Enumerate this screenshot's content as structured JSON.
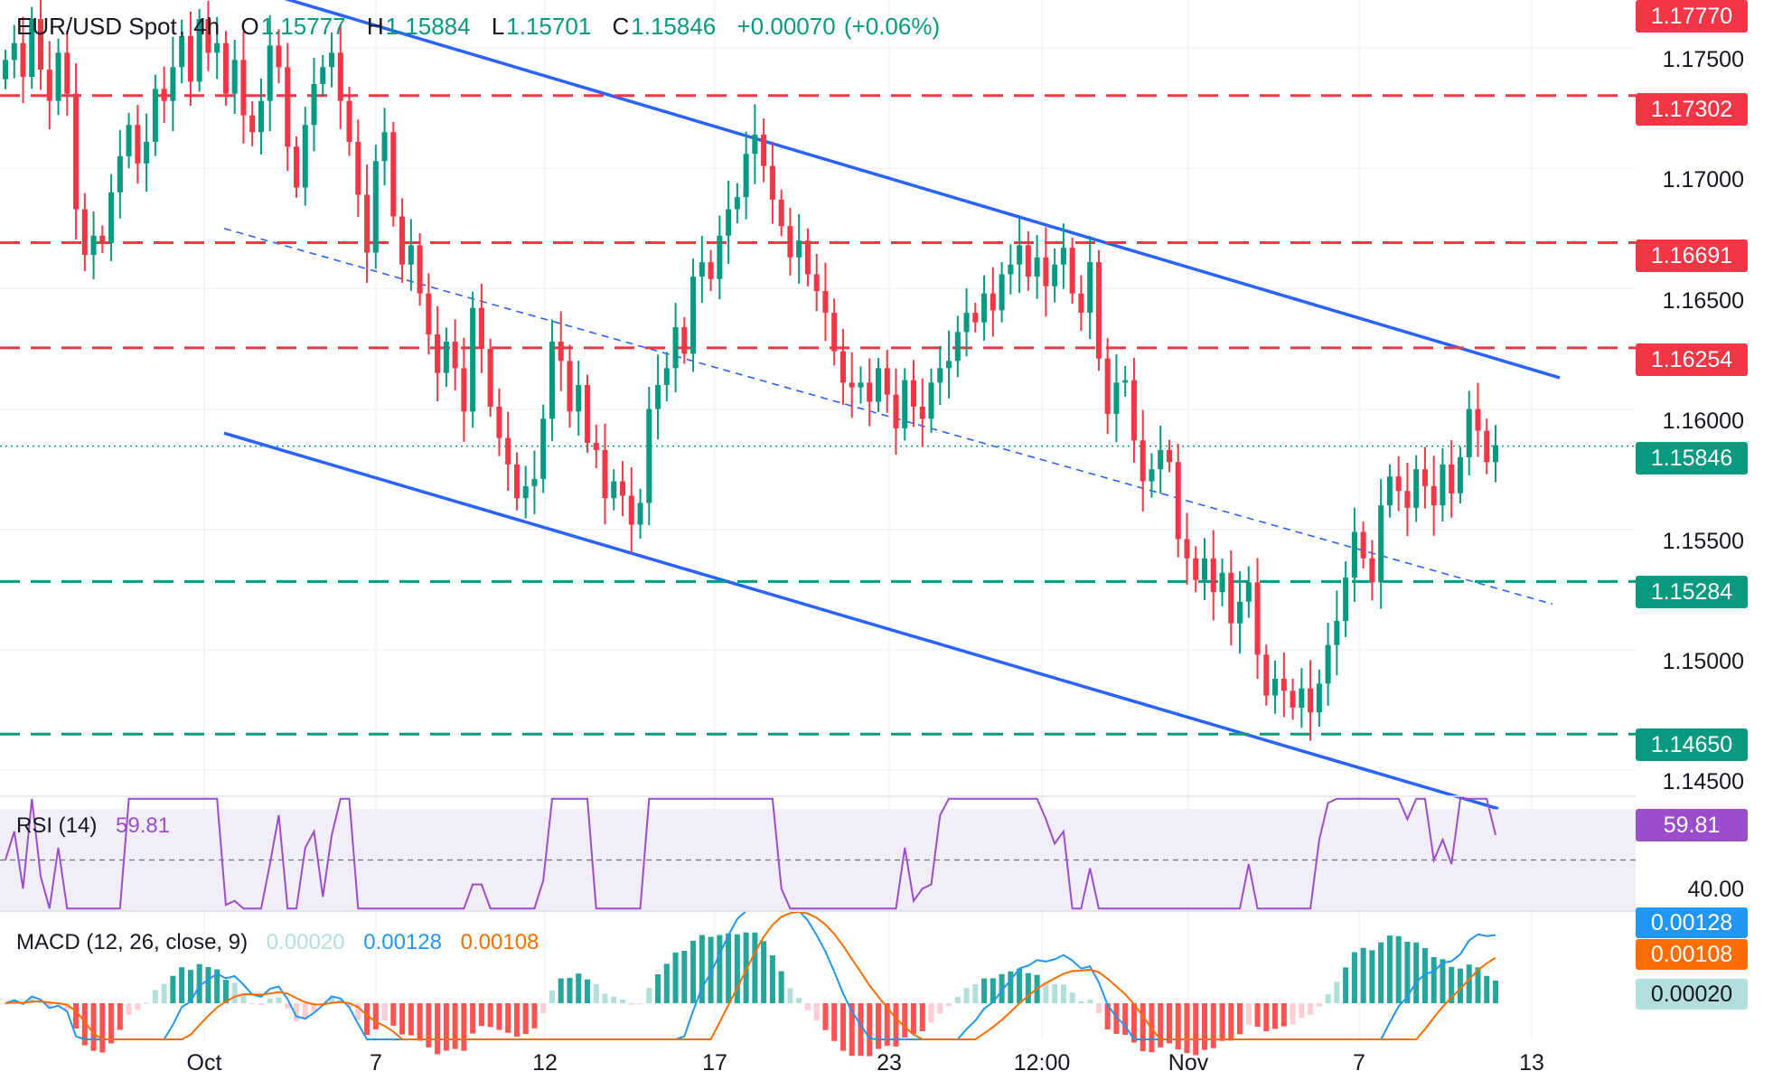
{
  "header": {
    "symbol": "EUR/USD Spot",
    "sep": ",",
    "interval": "4h",
    "open_label": "O",
    "open": "1.15777",
    "high_label": "H",
    "high": "1.15884",
    "low_label": "L",
    "low": "1.15701",
    "close_label": "C",
    "close": "1.15846",
    "change": "+0.00070",
    "change_pct": "(+0.06%)"
  },
  "price_axis": {
    "ticks": [
      "1.17500",
      "1.17000",
      "1.16500",
      "1.16000",
      "1.15500",
      "1.15000",
      "1.14500"
    ],
    "current_price": "1.15846",
    "current_price_color": "#089981"
  },
  "levels": {
    "resistance": [
      {
        "label": "1.17770",
        "value": 1.1777,
        "dashed": false
      },
      {
        "label": "1.17302",
        "value": 1.17302,
        "dashed": true
      },
      {
        "label": "1.16691",
        "value": 1.16691,
        "dashed": true
      },
      {
        "label": "1.16254",
        "value": 1.16254,
        "dashed": true
      }
    ],
    "support": [
      {
        "label": "1.15284",
        "value": 1.15284,
        "dashed": true
      },
      {
        "label": "1.14650",
        "value": 1.1465,
        "dashed": true
      }
    ],
    "resistance_color": "#f23645",
    "support_color": "#089981"
  },
  "rsi": {
    "label": "RSI (14)",
    "value": "59.81",
    "axis_tick": "40.00",
    "color": "#9c4dcc"
  },
  "macd": {
    "label": "MACD (12, 26, close, 9)",
    "histogram": "0.00020",
    "macd": "0.00128",
    "signal": "0.00108",
    "histogram_color": "#b2dfdb",
    "macd_color": "#2196f3",
    "signal_color": "#ff6d00"
  },
  "x_axis": {
    "ticks": [
      "Oct",
      "7",
      "12",
      "17",
      "23",
      "12:00",
      "Nov",
      "7",
      "13"
    ]
  },
  "colors": {
    "up": "#089981",
    "down": "#f23645",
    "channel": "#2962ff"
  },
  "chart_data": {
    "type": "candlestick",
    "title": "EUR/USD Spot, 4h",
    "instrument": "EUR/USD Spot",
    "timeframe": "4h",
    "ohlc_last": {
      "open": 1.15777,
      "high": 1.15884,
      "low": 1.15701,
      "close": 1.15846,
      "change": 0.0007,
      "change_pct": 0.06
    },
    "x_range": [
      "Sep 26",
      "Nov 11"
    ],
    "ylim": [
      1.1435,
      1.1785
    ],
    "candle_closes_approx": [
      1.1745,
      1.1752,
      1.1738,
      1.1762,
      1.1741,
      1.1728,
      1.1748,
      1.1731,
      1.1683,
      1.1664,
      1.1672,
      1.1669,
      1.169,
      1.1705,
      1.1718,
      1.1702,
      1.1711,
      1.1733,
      1.1728,
      1.1742,
      1.1755,
      1.1736,
      1.1762,
      1.1748,
      1.1752,
      1.1731,
      1.1745,
      1.1722,
      1.1715,
      1.1728,
      1.1751,
      1.1742,
      1.1709,
      1.1692,
      1.1718,
      1.1735,
      1.1742,
      1.1748,
      1.1728,
      1.1711,
      1.1689,
      1.1665,
      1.1703,
      1.1715,
      1.168,
      1.166,
      1.1668,
      1.1648,
      1.1631,
      1.1615,
      1.1628,
      1.1617,
      1.1599,
      1.1642,
      1.1625,
      1.1601,
      1.1588,
      1.1577,
      1.1563,
      1.1568,
      1.1571,
      1.1596,
      1.1628,
      1.162,
      1.1599,
      1.161,
      1.1586,
      1.1583,
      1.1563,
      1.157,
      1.1564,
      1.1552,
      1.1561,
      1.16,
      1.161,
      1.1617,
      1.1634,
      1.1623,
      1.1655,
      1.1661,
      1.1654,
      1.1672,
      1.1683,
      1.1688,
      1.1706,
      1.1714,
      1.1701,
      1.1687,
      1.1676,
      1.1663,
      1.167,
      1.1656,
      1.1649,
      1.164,
      1.1624,
      1.1611,
      1.1609,
      1.1611,
      1.1603,
      1.1617,
      1.1606,
      1.1592,
      1.1612,
      1.1601,
      1.1596,
      1.1611,
      1.1617,
      1.162,
      1.1632,
      1.164,
      1.1636,
      1.1648,
      1.1641,
      1.1656,
      1.166,
      1.1668,
      1.1655,
      1.1663,
      1.1651,
      1.166,
      1.1667,
      1.1648,
      1.164,
      1.1661,
      1.1621,
      1.1598,
      1.1611,
      1.1612,
      1.1587,
      1.157,
      1.1575,
      1.1583,
      1.1578,
      1.1546,
      1.1538,
      1.1529,
      1.1538,
      1.1524,
      1.1532,
      1.1511,
      1.152,
      1.1528,
      1.1498,
      1.1481,
      1.1488,
      1.1483,
      1.1476,
      1.1484,
      1.1474,
      1.1486,
      1.1502,
      1.1512,
      1.153,
      1.1549,
      1.1538,
      1.1528,
      1.156,
      1.1572,
      1.1566,
      1.1559,
      1.1575,
      1.1568,
      1.156,
      1.1577,
      1.1565,
      1.158,
      1.16,
      1.1591,
      1.1578,
      1.1585
    ],
    "price_lines": [
      1.1777,
      1.17302,
      1.16691,
      1.16254,
      1.15284,
      1.1465
    ],
    "current_price": 1.15846,
    "channel": {
      "upper": [
        {
          "x": "Sep 30",
          "y": 1.1778
        },
        {
          "x": "Nov 11",
          "y": 1.1613
        }
      ],
      "lower": [
        {
          "x": "Sep 30",
          "y": 1.159
        },
        {
          "x": "Nov 11",
          "y": 1.1434
        }
      ],
      "mid": [
        {
          "x": "Sep 30",
          "y": 1.1675
        },
        {
          "x": "Nov 11",
          "y": 1.1519
        }
      ]
    },
    "rsi_14": {
      "value": 59.81,
      "tick": 40,
      "ylim": [
        30,
        75
      ]
    },
    "macd": {
      "histogram": 0.0002,
      "macd": 0.00128,
      "signal": 0.00108
    }
  }
}
